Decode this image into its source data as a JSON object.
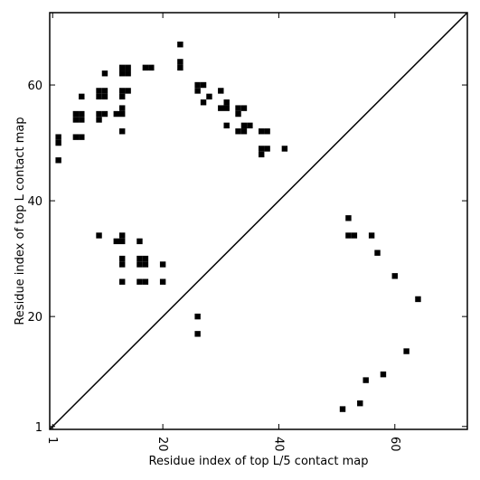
{
  "chart_data": {
    "type": "scatter",
    "xlabel": "Residue index of top L/5 contact map",
    "ylabel": "Residue index of top L contact map",
    "xlim": [
      0.5,
      72.5
    ],
    "ylim": [
      0.5,
      72.5
    ],
    "x_ticks": [
      {
        "value": 1,
        "label": "1"
      },
      {
        "value": 20,
        "label": "20"
      },
      {
        "value": 40,
        "label": "40"
      },
      {
        "value": 60,
        "label": "60"
      }
    ],
    "y_ticks": [
      {
        "value": 1,
        "label": "1"
      },
      {
        "value": 20,
        "label": "20"
      },
      {
        "value": 40,
        "label": "40"
      },
      {
        "value": 60,
        "label": "60"
      }
    ],
    "grid": false,
    "diagonal": true,
    "marker_color": "#000000",
    "series": [
      {
        "points": [
          [
            2,
            51
          ],
          [
            2,
            50
          ],
          [
            2,
            47
          ],
          [
            6,
            58
          ],
          [
            5,
            55
          ],
          [
            6,
            55
          ],
          [
            5,
            54
          ],
          [
            6,
            54
          ],
          [
            5,
            51
          ],
          [
            6,
            51
          ],
          [
            9,
            59
          ],
          [
            10,
            59
          ],
          [
            9,
            58
          ],
          [
            10,
            58
          ],
          [
            9,
            55
          ],
          [
            10,
            55
          ],
          [
            9,
            54
          ],
          [
            10,
            62
          ],
          [
            13,
            63
          ],
          [
            14,
            63
          ],
          [
            13,
            62
          ],
          [
            14,
            62
          ],
          [
            14,
            59
          ],
          [
            13,
            59
          ],
          [
            13,
            58
          ],
          [
            13,
            56
          ],
          [
            12,
            55
          ],
          [
            13,
            55
          ],
          [
            13,
            52
          ],
          [
            17,
            63
          ],
          [
            18,
            63
          ],
          [
            23,
            67
          ],
          [
            23,
            64
          ],
          [
            23,
            63
          ],
          [
            26,
            60
          ],
          [
            27,
            60
          ],
          [
            26,
            59
          ],
          [
            28,
            58
          ],
          [
            27,
            57
          ],
          [
            30,
            59
          ],
          [
            31,
            57
          ],
          [
            30,
            56
          ],
          [
            31,
            56
          ],
          [
            31,
            53
          ],
          [
            33,
            56
          ],
          [
            34,
            56
          ],
          [
            33,
            55
          ],
          [
            33,
            52
          ],
          [
            34,
            52
          ],
          [
            34,
            53
          ],
          [
            35,
            53
          ],
          [
            37,
            52
          ],
          [
            38,
            52
          ],
          [
            37,
            49
          ],
          [
            38,
            49
          ],
          [
            37,
            48
          ],
          [
            41,
            49
          ],
          [
            9,
            34
          ],
          [
            12,
            33
          ],
          [
            13,
            33
          ],
          [
            13,
            34
          ],
          [
            16,
            33
          ],
          [
            13,
            30
          ],
          [
            13,
            29
          ],
          [
            16,
            30
          ],
          [
            17,
            30
          ],
          [
            16,
            29
          ],
          [
            17,
            29
          ],
          [
            20,
            29
          ],
          [
            13,
            26
          ],
          [
            16,
            26
          ],
          [
            17,
            26
          ],
          [
            20,
            26
          ],
          [
            26,
            20
          ],
          [
            26,
            17
          ],
          [
            52,
            37
          ],
          [
            52,
            34
          ],
          [
            53,
            34
          ],
          [
            56,
            34
          ],
          [
            57,
            31
          ],
          [
            60,
            27
          ],
          [
            64,
            23
          ],
          [
            62,
            14
          ],
          [
            58,
            10
          ],
          [
            55,
            9
          ],
          [
            54,
            5
          ],
          [
            51,
            4
          ]
        ]
      }
    ]
  }
}
